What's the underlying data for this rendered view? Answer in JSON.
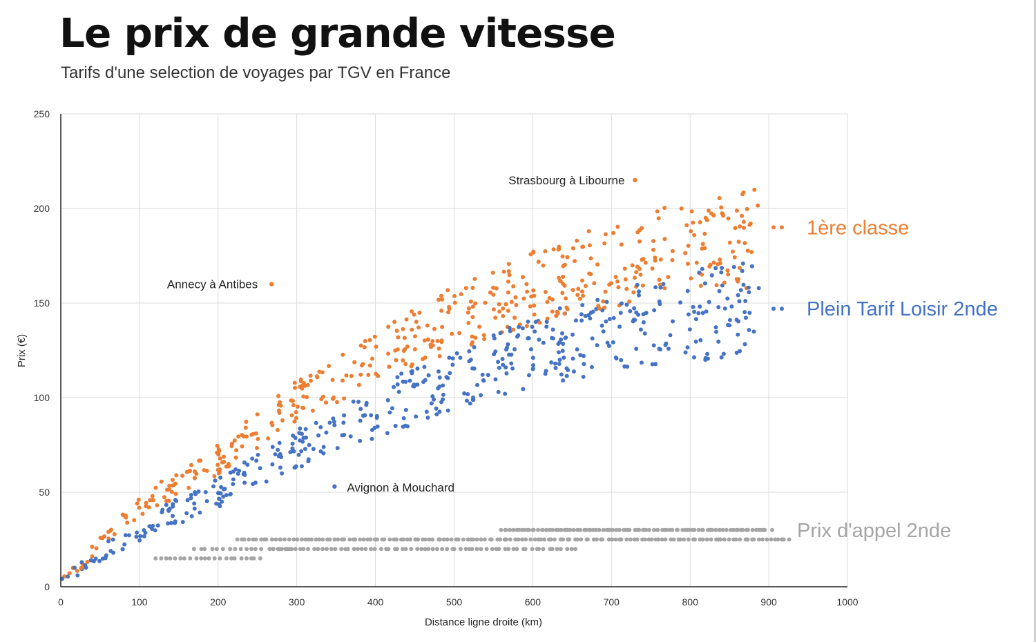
{
  "header": {
    "title": "Le prix de grande vitesse",
    "subtitle": "Tarifs d'une selection de voyages par TGV en France"
  },
  "chart_data": {
    "type": "scatter",
    "xlabel": "Distance ligne droite (km)",
    "ylabel": "Prix (€)",
    "xlim": [
      0,
      1000
    ],
    "ylim": [
      0,
      250
    ],
    "xticks": [
      "0",
      "100",
      "200",
      "300",
      "400",
      "500",
      "600",
      "700",
      "800",
      "900",
      "1000"
    ],
    "yticks": [
      "0",
      "50",
      "100",
      "150",
      "200",
      "250"
    ],
    "grid": true,
    "series": [
      {
        "name": "1ère classe",
        "color": "#ED7D31",
        "trend": [
          [
            0,
            4
          ],
          [
            50,
            22
          ],
          [
            100,
            42
          ],
          [
            200,
            68
          ],
          [
            300,
            98
          ],
          [
            400,
            122
          ],
          [
            500,
            142
          ],
          [
            600,
            158
          ],
          [
            700,
            170
          ],
          [
            800,
            180
          ],
          [
            900,
            185
          ]
        ]
      },
      {
        "name": "Plein Tarif Loisir 2nde",
        "color": "#4472C4",
        "trend": [
          [
            0,
            3
          ],
          [
            50,
            17
          ],
          [
            100,
            30
          ],
          [
            200,
            50
          ],
          [
            300,
            72
          ],
          [
            400,
            92
          ],
          [
            500,
            110
          ],
          [
            600,
            124
          ],
          [
            700,
            135
          ],
          [
            800,
            143
          ],
          [
            900,
            148
          ]
        ]
      },
      {
        "name": "Prix d'appel 2nde",
        "color": "#A5A5A5",
        "trend": [
          [
            120,
            15
          ],
          [
            300,
            20
          ],
          [
            500,
            25
          ],
          [
            700,
            27
          ],
          [
            900,
            30
          ]
        ]
      }
    ],
    "annotations": [
      {
        "text": "Strasbourg à Libourne",
        "x": 730,
        "y": 215,
        "series": 0
      },
      {
        "text": "Annecy à Antibes",
        "x": 268,
        "y": 160,
        "series": 0
      },
      {
        "text": "Avignon à Mouchard",
        "x": 348,
        "y": 53,
        "series": 1
      }
    ]
  }
}
